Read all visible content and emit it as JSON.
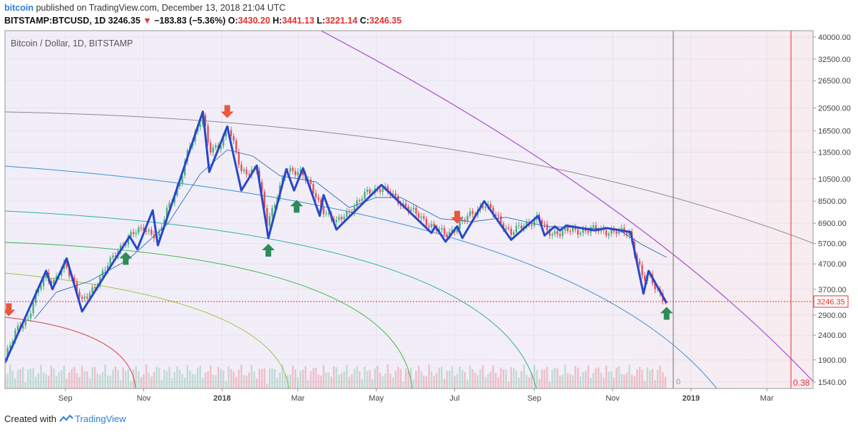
{
  "header": {
    "user": "bitcoin",
    "published": "published on TradingView.com, December 13, 2018 21:04 UTC",
    "symbol": "BITSTAMP:BTCUSD, 1D",
    "last": "3246.35",
    "change": "−183.83 (−5.36%)",
    "o_label": "O:",
    "o": "3430.20",
    "h_label": "H:",
    "h": "3441.13",
    "l_label": "L:",
    "l": "3221.14",
    "c_label": "C:",
    "c": "3246.35"
  },
  "footer": {
    "created_with": "Created with",
    "brand": "TradingView"
  },
  "colors": {
    "up": "#4caf7d",
    "down": "#e0525a",
    "zigzag": "#2748c8",
    "arrow_up": "#2e8b57",
    "arrow_down": "#e8573f",
    "price_line": "#e0322f"
  },
  "chart_data": {
    "type": "line",
    "title": "Bitcoin / Dollar, 1D, BITSTAMP",
    "scale": "log",
    "y_ticks": [
      40000,
      32500,
      26500,
      20500,
      16500,
      13500,
      10500,
      8500,
      6900,
      5700,
      4700,
      3700,
      2900,
      2400,
      1900,
      1540
    ],
    "y_tick_labels": [
      "40000.00",
      "32500.00",
      "26500.00",
      "20500.00",
      "16500.00",
      "13500.00",
      "10500.00",
      "8500.00",
      "6900.00",
      "5700.00",
      "4700.00",
      "3700.00",
      "2900.00",
      "2400.00",
      "1900.00",
      "1540.00"
    ],
    "x_ticks": [
      "Sep",
      "Nov",
      "2018",
      "Mar",
      "May",
      "Jul",
      "Sep",
      "Nov",
      "2019",
      "Mar"
    ],
    "x_range": [
      "2017-07-16",
      "2019-04-06"
    ],
    "ylim": [
      1450,
      42500
    ],
    "last_price": 3246.35,
    "last_price_label": "3246.35",
    "fib_label": "0.38",
    "volume_label": "0",
    "grid": true,
    "series": [
      {
        "type": "zigzag",
        "points": [
          [
            "2017-07-16",
            1850
          ],
          [
            "2017-08-17",
            4400
          ],
          [
            "2017-08-22",
            3700
          ],
          [
            "2017-09-02",
            4950
          ],
          [
            "2017-09-14",
            3000
          ],
          [
            "2017-10-21",
            6100
          ],
          [
            "2017-10-27",
            5400
          ],
          [
            "2017-11-08",
            7800
          ],
          [
            "2017-11-12",
            5600
          ],
          [
            "2017-12-17",
            19800
          ],
          [
            "2017-12-22",
            11200
          ],
          [
            "2018-01-05",
            17200
          ],
          [
            "2018-01-16",
            9400
          ],
          [
            "2018-01-28",
            11900
          ],
          [
            "2018-02-06",
            6000
          ],
          [
            "2018-02-20",
            11500
          ],
          [
            "2018-02-26",
            9400
          ],
          [
            "2018-03-05",
            11600
          ],
          [
            "2018-03-18",
            7400
          ],
          [
            "2018-03-21",
            9000
          ],
          [
            "2018-03-31",
            6500
          ],
          [
            "2018-05-05",
            9900
          ],
          [
            "2018-06-13",
            6300
          ],
          [
            "2018-06-16",
            6700
          ],
          [
            "2018-06-24",
            5800
          ],
          [
            "2018-07-03",
            6700
          ],
          [
            "2018-07-07",
            6000
          ],
          [
            "2018-07-24",
            8500
          ],
          [
            "2018-08-14",
            5900
          ],
          [
            "2018-09-04",
            7400
          ],
          [
            "2018-09-09",
            6150
          ],
          [
            "2018-09-17",
            6700
          ],
          [
            "2018-09-21",
            6450
          ],
          [
            "2018-09-26",
            6750
          ],
          [
            "2018-10-18",
            6450
          ],
          [
            "2018-10-27",
            6600
          ],
          [
            "2018-11-15",
            6350
          ],
          [
            "2018-11-25",
            3550
          ],
          [
            "2018-11-29",
            4400
          ],
          [
            "2018-12-13",
            3246
          ]
        ]
      },
      {
        "type": "close",
        "points": [
          [
            "2017-07-16",
            1900
          ],
          [
            "2017-07-25",
            2600
          ],
          [
            "2017-08-03",
            2750
          ],
          [
            "2017-08-12",
            3900
          ],
          [
            "2017-08-17",
            4300
          ],
          [
            "2017-08-22",
            3800
          ],
          [
            "2017-09-01",
            4800
          ],
          [
            "2017-09-14",
            3250
          ],
          [
            "2017-09-29",
            4200
          ],
          [
            "2017-10-12",
            5400
          ],
          [
            "2017-10-20",
            6000
          ],
          [
            "2017-11-01",
            6700
          ],
          [
            "2017-11-12",
            5900
          ],
          [
            "2017-11-20",
            8200
          ],
          [
            "2017-11-29",
            10000
          ],
          [
            "2017-12-07",
            14500
          ],
          [
            "2017-12-17",
            19300
          ],
          [
            "2017-12-22",
            13500
          ],
          [
            "2017-12-29",
            14200
          ],
          [
            "2018-01-06",
            17100
          ],
          [
            "2018-01-16",
            11200
          ],
          [
            "2018-01-28",
            11500
          ],
          [
            "2018-02-05",
            6900
          ],
          [
            "2018-02-19",
            11100
          ],
          [
            "2018-03-04",
            11400
          ],
          [
            "2018-03-18",
            8200
          ],
          [
            "2018-03-31",
            6900
          ],
          [
            "2018-04-25",
            9300
          ],
          [
            "2018-05-05",
            9700
          ],
          [
            "2018-06-01",
            7500
          ],
          [
            "2018-06-24",
            6150
          ],
          [
            "2018-07-24",
            8300
          ],
          [
            "2018-08-14",
            6300
          ],
          [
            "2018-09-04",
            7300
          ],
          [
            "2018-09-11",
            6300
          ],
          [
            "2018-10-15",
            6500
          ],
          [
            "2018-11-14",
            6300
          ],
          [
            "2018-11-25",
            4000
          ],
          [
            "2018-11-29",
            4200
          ],
          [
            "2018-12-13",
            3246
          ]
        ]
      },
      {
        "type": "moving_average",
        "points": [
          [
            "2017-08-08",
            2800
          ],
          [
            "2017-08-25",
            3600
          ],
          [
            "2017-09-20",
            4000
          ],
          [
            "2017-10-20",
            4900
          ],
          [
            "2017-11-20",
            6900
          ],
          [
            "2017-12-15",
            11000
          ],
          [
            "2018-01-05",
            13800
          ],
          [
            "2018-01-25",
            13000
          ],
          [
            "2018-02-15",
            10800
          ],
          [
            "2018-03-15",
            10200
          ],
          [
            "2018-04-10",
            8000
          ],
          [
            "2018-05-01",
            8800
          ],
          [
            "2018-05-20",
            8800
          ],
          [
            "2018-06-20",
            7200
          ],
          [
            "2018-07-15",
            7000
          ],
          [
            "2018-08-10",
            7300
          ],
          [
            "2018-09-10",
            6700
          ],
          [
            "2018-10-10",
            6600
          ],
          [
            "2018-11-05",
            6500
          ],
          [
            "2018-11-25",
            5600
          ],
          [
            "2018-12-13",
            5000
          ]
        ]
      }
    ],
    "signals": [
      {
        "dir": "down",
        "date": "2017-07-19",
        "price": 3050
      },
      {
        "dir": "up",
        "date": "2017-10-18",
        "price": 4950
      },
      {
        "dir": "down",
        "date": "2018-01-05",
        "price": 19800
      },
      {
        "dir": "up",
        "date": "2018-02-06",
        "price": 5350
      },
      {
        "dir": "up",
        "date": "2018-02-28",
        "price": 8100
      },
      {
        "dir": "down",
        "date": "2018-07-03",
        "price": 7300
      },
      {
        "dir": "up",
        "date": "2018-12-13",
        "price": 2950
      }
    ]
  }
}
